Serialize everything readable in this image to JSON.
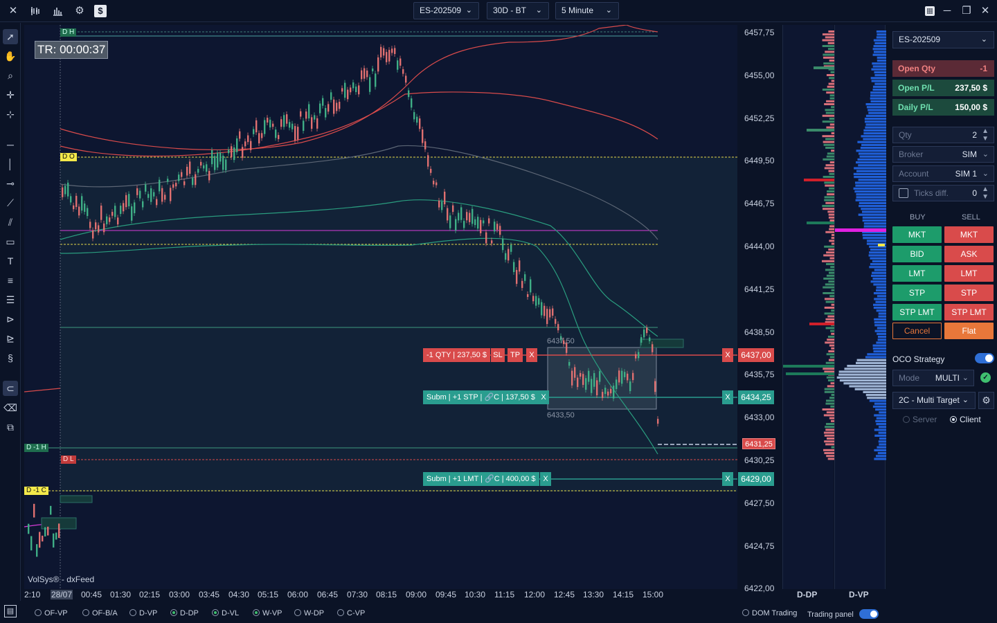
{
  "toolbar": {
    "symbol": "ES-202509",
    "range": "30D - BT",
    "interval": "5 Minute"
  },
  "chart": {
    "timer": "TR: 00:00:37",
    "watermark": "VolSys® - dxFeed",
    "level_labels": {
      "dh": "D H",
      "do": "D O",
      "dm1h": "D -1 H",
      "dl": "D L",
      "dm1c": "D -1 C"
    },
    "box_top": "6437,50",
    "box_bottom": "6433,50",
    "orders": [
      {
        "label": "-1 QTY | 237,50 $",
        "sl": "SL",
        "tp": "TP",
        "x": "X",
        "price": "6437,00"
      },
      {
        "label": "Subm | +1 STP | 🔗C | 137,50 $",
        "x": "X",
        "price": "6434,25"
      },
      {
        "label": "Subm | +1 LMT | 🔗C | 400,00 $",
        "x": "X",
        "price": "6429,00"
      }
    ],
    "last_price": "6431,25",
    "price_axis": [
      "6457,75",
      "6455,00",
      "6452,25",
      "6449,50",
      "6446,75",
      "6444,00",
      "6441,25",
      "6438,50",
      "6435,75",
      "6433,00",
      "6430,25",
      "6427,50",
      "6424,75",
      "6422,00"
    ],
    "time_axis": [
      "2:10",
      "28/07",
      "00:45",
      "01:30",
      "02:15",
      "03:00",
      "03:45",
      "04:30",
      "05:15",
      "06:00",
      "06:45",
      "07:30",
      "08:15",
      "09:00",
      "09:45",
      "10:30",
      "11:15",
      "12:00",
      "12:45",
      "13:30",
      "14:15",
      "15:00"
    ]
  },
  "profiles": {
    "dp_title": "D-DP",
    "vp_title": "D-VP"
  },
  "bottom": {
    "toggles": [
      {
        "label": "OF-VP",
        "on": false
      },
      {
        "label": "OF-B/A",
        "on": false
      },
      {
        "label": "D-VP",
        "on": false
      },
      {
        "label": "D-DP",
        "on": true
      },
      {
        "label": "D-VL",
        "on": true
      },
      {
        "label": "W-VP",
        "on": true
      },
      {
        "label": "W-DP",
        "on": false
      },
      {
        "label": "C-VP",
        "on": false
      }
    ],
    "dom_trading": "DOM Trading",
    "trading_panel": "Trading panel"
  },
  "panel": {
    "symbol": "ES-202509",
    "open_qty_label": "Open Qty",
    "open_qty": "-1",
    "open_pl_label": "Open P/L",
    "open_pl": "237,50 $",
    "daily_pl_label": "Daily P/L",
    "daily_pl": "150,00 $",
    "qty_label": "Qty",
    "qty": "2",
    "broker_label": "Broker",
    "broker": "SIM",
    "account_label": "Account",
    "account": "SIM 1",
    "ticks_label": "Ticks diff.",
    "ticks": "0",
    "buy_header": "BUY",
    "sell_header": "SELL",
    "buttons": [
      {
        "buy": "MKT",
        "sell": "MKT"
      },
      {
        "buy": "BID",
        "sell": "ASK"
      },
      {
        "buy": "LMT",
        "sell": "LMT"
      },
      {
        "buy": "STP",
        "sell": "STP"
      },
      {
        "buy": "STP LMT",
        "sell": "STP LMT"
      }
    ],
    "cancel": "Cancel",
    "flat": "Flat",
    "oco_label": "OCO Strategy",
    "mode_label": "Mode",
    "mode": "MULTI",
    "strategy": "2C - Multi Target",
    "server": "Server",
    "client": "Client"
  },
  "colors": {
    "buy": "#1d9c6b",
    "sell": "#d94b4b",
    "accent": "#2f6fd6",
    "profile_blue": "#1f5fd8"
  }
}
